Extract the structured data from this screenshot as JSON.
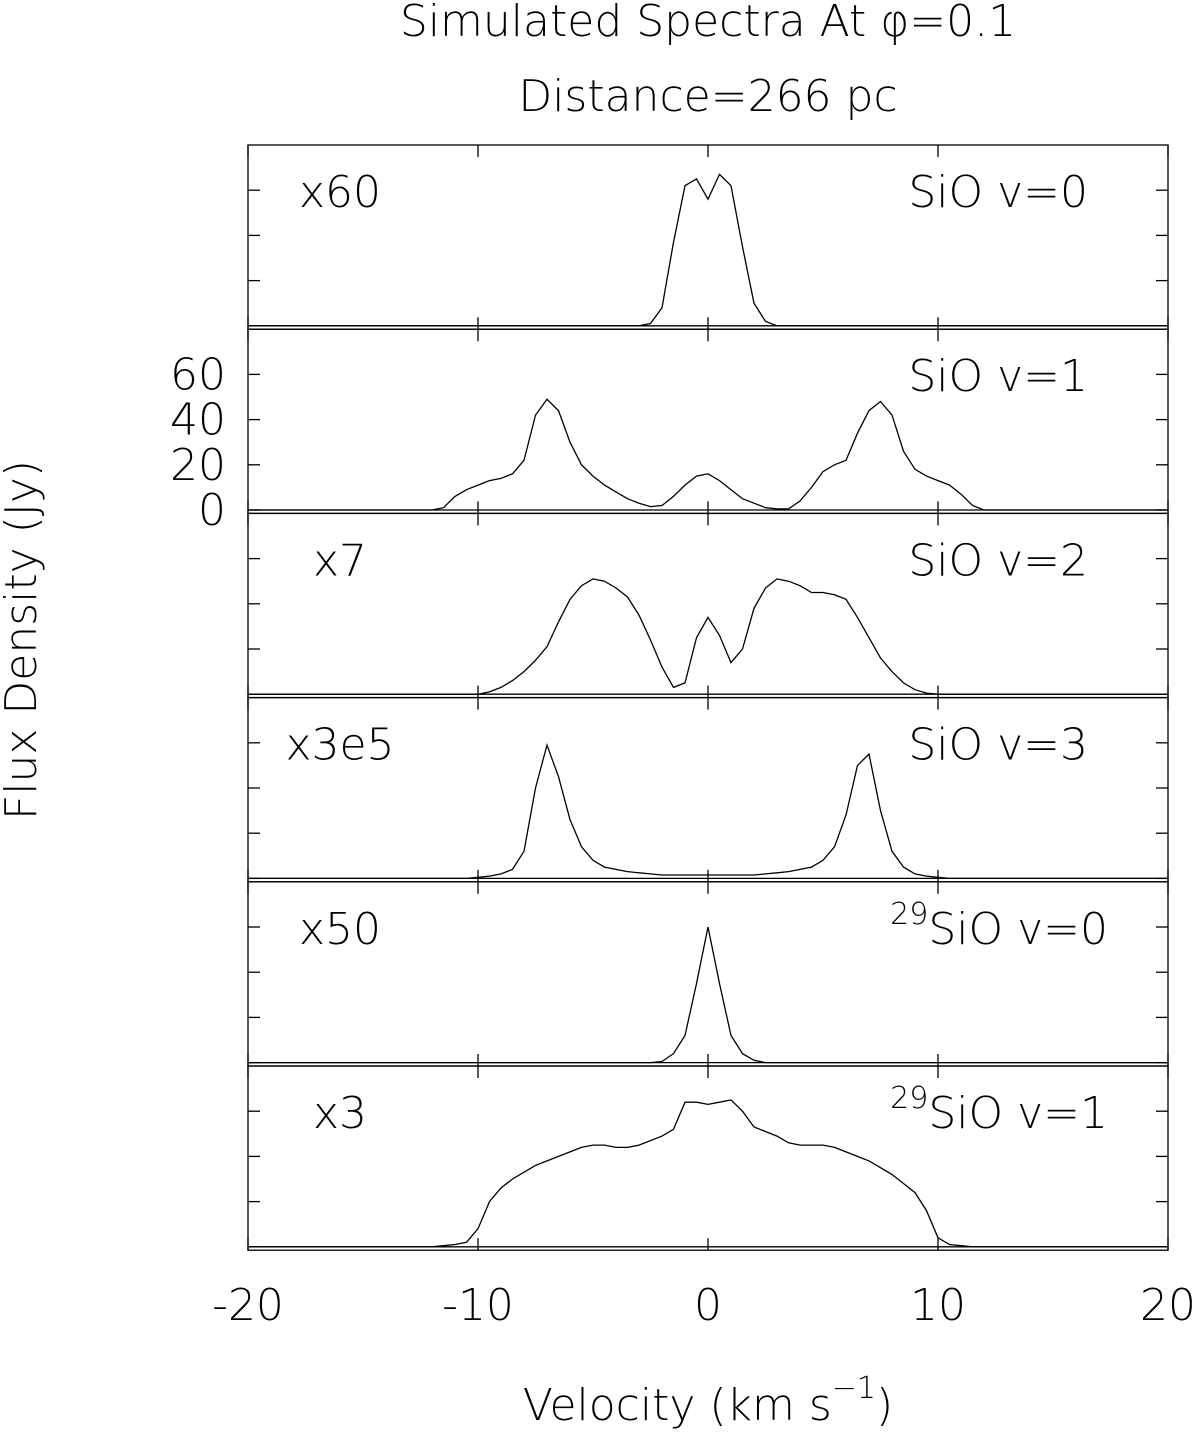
{
  "chart_data": {
    "type": "line",
    "title": "Simulated Spectra At φ=0.1",
    "subtitle": "Distance=266 pc",
    "x_label": "Velocity (km s",
    "x_label_exponent": "−1",
    "x_label_end": ")",
    "y_label": "Flux Density (Jy)",
    "xlim": [
      -20,
      20
    ],
    "xticks": [
      -20,
      -10,
      0,
      10,
      20
    ],
    "ylim": [
      -1.5,
      80
    ],
    "yticks": [
      0,
      20,
      40,
      60
    ],
    "x": [
      -20,
      -12,
      -11.5,
      -11,
      -10.5,
      -10,
      -9.5,
      -9,
      -8.5,
      -8,
      -7.5,
      -7,
      -6.5,
      -6,
      -5.5,
      -5,
      -4.5,
      -4,
      -3.5,
      -3,
      -2.5,
      -2,
      -1.5,
      -1,
      -0.5,
      0,
      0.5,
      1,
      1.5,
      2,
      2.5,
      3,
      3.5,
      4,
      4.5,
      5,
      5.5,
      6,
      6.5,
      7,
      7.5,
      8,
      8.5,
      9,
      9.5,
      10,
      10.5,
      11,
      11.5,
      12,
      20
    ],
    "panels": [
      {
        "label": "SiO v=0",
        "scale_label": "x60",
        "values": [
          0,
          0,
          0,
          0,
          0,
          0,
          0,
          0,
          0,
          0,
          0,
          0,
          0,
          0,
          0,
          0,
          0,
          0,
          0,
          0,
          1,
          8,
          37,
          62,
          65,
          56,
          67,
          62,
          35,
          10,
          2,
          0,
          0,
          0,
          0,
          0,
          0,
          0,
          0,
          0,
          0,
          0,
          0,
          0,
          0,
          0,
          0,
          0,
          0,
          0,
          0
        ]
      },
      {
        "label": "SiO v=1",
        "show_ytick_labels": true,
        "values": [
          0,
          0,
          1,
          6,
          9,
          11,
          13,
          14,
          16,
          22,
          42,
          49,
          44,
          30,
          20,
          15,
          11,
          8,
          5,
          3,
          1.5,
          2,
          6,
          11,
          15,
          16,
          13,
          9,
          5,
          3,
          1,
          0.5,
          0.5,
          4,
          10,
          17,
          20,
          22,
          34,
          44,
          48,
          42,
          26,
          18,
          15,
          13,
          11,
          7,
          2,
          0,
          0
        ]
      },
      {
        "label": "SiO v=2",
        "scale_label": "x7",
        "values": [
          0,
          0,
          0,
          0,
          0,
          0,
          1,
          3,
          6,
          10,
          15,
          21,
          32,
          42,
          48,
          51,
          50,
          47,
          43,
          35,
          24,
          12,
          3,
          5,
          25,
          34,
          26,
          14,
          20,
          38,
          47,
          51,
          50,
          48,
          45,
          45,
          44,
          42,
          34,
          25,
          16,
          10,
          5,
          2,
          0.5,
          0,
          0,
          0,
          0,
          0,
          0
        ]
      },
      {
        "label": "SiO v=3",
        "scale_label": "x3e5",
        "values": [
          0,
          0,
          0,
          0,
          0,
          0.5,
          1,
          2,
          4,
          12,
          40,
          59,
          45,
          26,
          14,
          8,
          5,
          4,
          3,
          2.5,
          2,
          1.5,
          1.5,
          1.5,
          1.5,
          1.5,
          1.5,
          1.5,
          1.5,
          1.5,
          2,
          2.5,
          3,
          4,
          5,
          8,
          14,
          28,
          50,
          55,
          30,
          12,
          5,
          2,
          1,
          0.5,
          0,
          0,
          0,
          0,
          0
        ]
      },
      {
        "label": "SiO v=0",
        "isotope": "29",
        "scale_label": "x50",
        "values": [
          0,
          0,
          0,
          0,
          0,
          0,
          0,
          0,
          0,
          0,
          0,
          0,
          0,
          0,
          0,
          0,
          0,
          0,
          0,
          0,
          0,
          0.5,
          4,
          12,
          35,
          60,
          35,
          12,
          4,
          1,
          0,
          0,
          0,
          0,
          0,
          0,
          0,
          0,
          0,
          0,
          0,
          0,
          0,
          0,
          0,
          0,
          0,
          0,
          0,
          0,
          0
        ]
      },
      {
        "label": "SiO v=1",
        "isotope": "29",
        "scale_label": "x3",
        "values": [
          0,
          0,
          0.5,
          1,
          2,
          8,
          20,
          26,
          30,
          33,
          36,
          38,
          40,
          42,
          44,
          45,
          45,
          44,
          44,
          45,
          47,
          49,
          52,
          64,
          64,
          63,
          64,
          65,
          60,
          53,
          51,
          49,
          46,
          45,
          45,
          45,
          44,
          42,
          40,
          38,
          35,
          32,
          28,
          24,
          16,
          4,
          1,
          0.5,
          0,
          0,
          0
        ]
      }
    ]
  }
}
